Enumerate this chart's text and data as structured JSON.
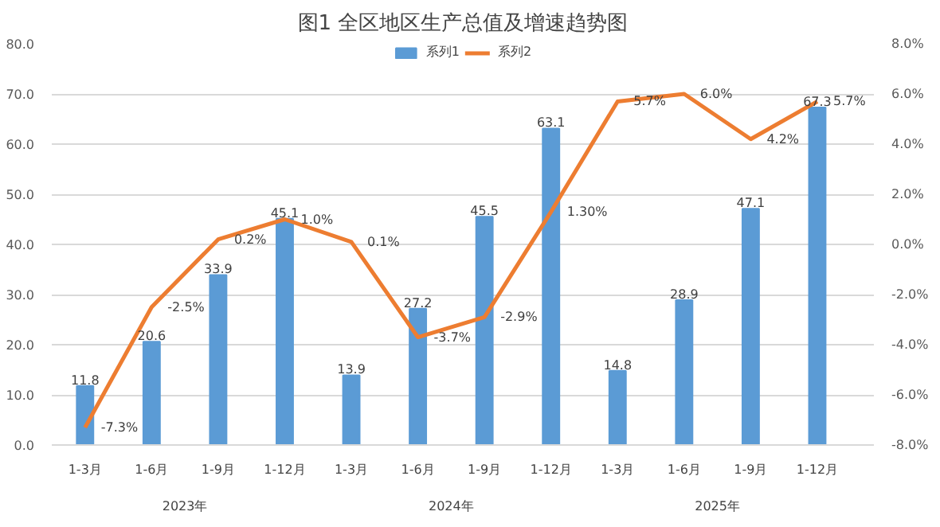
{
  "chart_data": {
    "type": "bar",
    "title": "图1 全区地区生产总值及增速趋势图",
    "categories": [
      "1-3月",
      "1-6月",
      "1-9月",
      "1-12月",
      "1-3月",
      "1-6月",
      "1-9月",
      "1-12月",
      "1-3月",
      "1-6月",
      "1-9月",
      "1-12月"
    ],
    "series": [
      {
        "name": "系列1",
        "color": "#5b9bd5",
        "values": [
          11.8,
          20.6,
          33.9,
          45.1,
          13.9,
          27.2,
          45.5,
          63.1,
          14.8,
          28.9,
          47.1,
          67.3
        ]
      },
      {
        "name": "系列2",
        "type": "line",
        "axis": "y2",
        "color": "#ed7d31",
        "values": [
          -7.3,
          -2.5,
          0.2,
          1.0,
          0.1,
          -3.7,
          -2.9,
          1.3,
          5.7,
          6.0,
          4.2,
          5.7
        ],
        "value_labels": [
          "-7.3%",
          "-2.5%",
          "0.2%",
          "1.0%",
          "0.1%",
          "-3.7%",
          "-2.9%",
          "1.30%",
          "5.7%",
          "6.0%",
          "4.2%",
          "5.7%"
        ]
      }
    ],
    "annotations": [
      "2023年",
      "2024年",
      "2025年"
    ],
    "ylim": [
      0,
      80
    ],
    "yticks": [
      {
        "value": 0,
        "label": "0.0"
      },
      {
        "value": 10,
        "label": "10.0"
      },
      {
        "value": 20,
        "label": "20.0"
      },
      {
        "value": 30,
        "label": "30.0"
      },
      {
        "value": 40,
        "label": "40.0"
      },
      {
        "value": 50,
        "label": "50.0"
      },
      {
        "value": 60,
        "label": "60.0"
      },
      {
        "value": 70,
        "label": "70.0"
      },
      {
        "value": 80,
        "label": "80.0"
      }
    ],
    "y2lim": [
      -8,
      8
    ],
    "y2ticks": [
      {
        "value": -8,
        "label": "-8.0%"
      },
      {
        "value": -6,
        "label": "-6.0%"
      },
      {
        "value": -4,
        "label": "-4.0%"
      },
      {
        "value": -2,
        "label": "-2.0%"
      },
      {
        "value": 0,
        "label": "0.0%"
      },
      {
        "value": 2,
        "label": "2.0%"
      },
      {
        "value": 4,
        "label": "4.0%"
      },
      {
        "value": 6,
        "label": "6.0%"
      },
      {
        "value": 8,
        "label": "8.0%"
      }
    ],
    "data_labels": true,
    "grid": "y",
    "legend": "top",
    "marker": "none",
    "line_style": "solid"
  }
}
